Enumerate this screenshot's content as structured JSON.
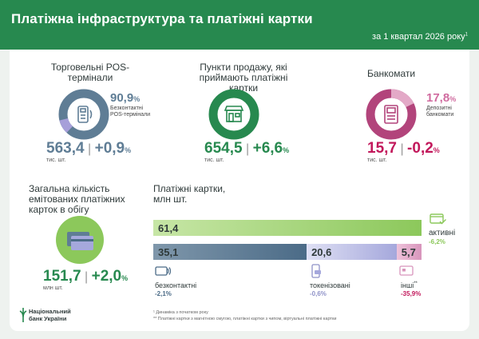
{
  "header": {
    "title": "Платіжна інфраструктура та платіжні картки",
    "subtitle": "за 1 квартал 2026 року"
  },
  "colors": {
    "brand_green": "#27894f",
    "pos_blue": "#5f7d95",
    "pos_lilac": "#a69fd9",
    "atm_magenta": "#b2447b",
    "atm_pink": "#e3a9c7",
    "active_green": "#8cc85b",
    "contactless_blue": "#4b6b87",
    "tokenized_lilac": "#a5a8dc",
    "other_pink": "#d895bc",
    "negative_red": "#c2185b",
    "positive_green": "#27894f"
  },
  "pos": {
    "label": "Торговельні POS-термінали",
    "share_value": "90,9",
    "share_pct": "%",
    "share_label": "Безконтактні POS-термінали",
    "count": "563,4",
    "change": "+0,9",
    "change_pct": "%",
    "unit": "тис. шт.",
    "icon": "pos-terminal-icon"
  },
  "points": {
    "label": "Пункти продажу, які приймають платіжні картки",
    "count": "654,5",
    "change": "+6,6",
    "change_pct": "%",
    "unit": "тис. шт.",
    "icon": "store-icon"
  },
  "atm": {
    "label": "Банкомати",
    "share_value": "17,8",
    "share_pct": "%",
    "share_label": "Депозитні банкомати",
    "count": "15,7",
    "change": "-0,2",
    "change_pct": "%",
    "unit": "тис. шт.",
    "icon": "atm-icon"
  },
  "cards": {
    "label": "Загальна кількість емітованих платіжних карток в обігу",
    "count": "151,7",
    "change": "+2,0",
    "change_pct": "%",
    "unit": "млн шт.",
    "icon": "payment-cards-icon"
  },
  "chart_data": [
    {
      "type": "pie",
      "name": "pos",
      "values": [
        90.9,
        9.1
      ],
      "highlight": 90.9
    },
    {
      "type": "pie",
      "name": "points",
      "values": [
        100
      ]
    },
    {
      "type": "pie",
      "name": "atm",
      "values": [
        17.8,
        82.2
      ],
      "highlight": 17.8
    },
    {
      "type": "bar",
      "title": "Платіжні картки, млн шт.",
      "orientation": "horizontal-stacked",
      "active": {
        "label": "активні",
        "value": 61.4,
        "value_label": "61,4",
        "change": "-6,2%",
        "icon": "card-check-icon"
      },
      "segments": [
        {
          "label": "безконтактні",
          "value": 35.1,
          "value_label": "35,1",
          "change": "-2,1%",
          "icon": "contactless-card-icon"
        },
        {
          "label": "токенізовані",
          "value": 20.6,
          "value_label": "20,6",
          "change": "-0,6%",
          "icon": "phone-token-icon"
        },
        {
          "label": "інші",
          "label_sup": "**",
          "value": 5.7,
          "value_label": "5,7",
          "change": "-35,9%",
          "icon": "card-chip-icon"
        }
      ]
    }
  ],
  "footer": {
    "logo_line1": "Національний",
    "logo_line2": "банк України",
    "note1": "¹ Динаміка з початком року",
    "note2": "** Платіжні картки з магнітною смугою, платіжні картки з чипом, віртуальні платіжні картки"
  }
}
